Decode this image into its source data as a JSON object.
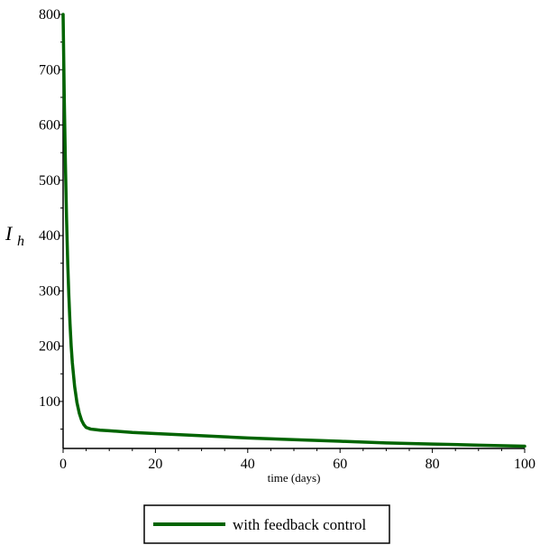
{
  "chart_data": {
    "type": "line",
    "title": "",
    "xlabel": "time (days)",
    "ylabel": {
      "main": "I",
      "sub": "h"
    },
    "xlim": [
      0,
      100
    ],
    "ylim": [
      15,
      800
    ],
    "xticks": [
      0,
      20,
      40,
      60,
      80,
      100
    ],
    "yticks": [
      100,
      200,
      300,
      400,
      500,
      600,
      700,
      800
    ],
    "grid": false,
    "legend_position": "bottom",
    "series": [
      {
        "name": "with feedback control",
        "color": "#006400",
        "x": [
          0,
          0.25,
          0.5,
          0.75,
          1,
          1.25,
          1.5,
          1.75,
          2,
          2.5,
          3,
          3.5,
          4,
          4.5,
          5,
          6,
          7,
          8,
          10,
          15,
          20,
          30,
          40,
          50,
          60,
          70,
          80,
          90,
          100
        ],
        "y": [
          800,
          650,
          530,
          430,
          350,
          290,
          240,
          200,
          170,
          127,
          98,
          79,
          66,
          58,
          53,
          50,
          49,
          48,
          47,
          44,
          42,
          38,
          34,
          31,
          28,
          25,
          23,
          21,
          19
        ]
      }
    ]
  }
}
